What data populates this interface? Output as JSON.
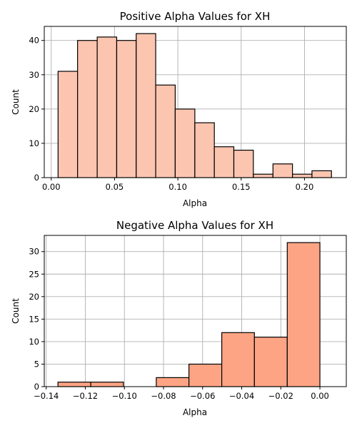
{
  "chart_data": [
    {
      "type": "bar",
      "title": "Positive Alpha Values for XH",
      "xlabel": "Alpha",
      "ylabel": "Count",
      "bar_color": "#fcc5b0",
      "edge_color": "#000000",
      "grid": true,
      "xlim": [
        -0.0055,
        0.233
      ],
      "ylim": [
        0,
        44.1
      ],
      "xticks": [
        0.0,
        0.05,
        0.1,
        0.15,
        0.2
      ],
      "xtick_labels": [
        "0.00",
        "0.05",
        "0.10",
        "0.15",
        "0.20"
      ],
      "yticks": [
        0,
        10,
        20,
        30,
        40
      ],
      "ytick_labels": [
        "0",
        "10",
        "20",
        "30",
        "40"
      ],
      "bins": [
        {
          "x0": 0.0054,
          "x1": 0.0208,
          "count": 31
        },
        {
          "x0": 0.0208,
          "x1": 0.0363,
          "count": 40
        },
        {
          "x0": 0.0363,
          "x1": 0.0517,
          "count": 41
        },
        {
          "x0": 0.0517,
          "x1": 0.0671,
          "count": 40
        },
        {
          "x0": 0.0671,
          "x1": 0.0825,
          "count": 42
        },
        {
          "x0": 0.0825,
          "x1": 0.0979,
          "count": 27
        },
        {
          "x0": 0.0979,
          "x1": 0.1134,
          "count": 20
        },
        {
          "x0": 0.1134,
          "x1": 0.1288,
          "count": 16
        },
        {
          "x0": 0.1288,
          "x1": 0.1442,
          "count": 9
        },
        {
          "x0": 0.1442,
          "x1": 0.1596,
          "count": 8
        },
        {
          "x0": 0.1596,
          "x1": 0.1751,
          "count": 1
        },
        {
          "x0": 0.1751,
          "x1": 0.1905,
          "count": 4
        },
        {
          "x0": 0.1905,
          "x1": 0.2059,
          "count": 1
        },
        {
          "x0": 0.2059,
          "x1": 0.2213,
          "count": 2
        }
      ]
    },
    {
      "type": "bar",
      "title": "Negative Alpha Values for XH",
      "xlabel": "Alpha",
      "ylabel": "Count",
      "bar_color": "#fca484",
      "edge_color": "#000000",
      "grid": true,
      "xlim": [
        -0.141,
        0.0135
      ],
      "ylim": [
        0,
        33.6
      ],
      "xticks": [
        -0.14,
        -0.12,
        -0.1,
        -0.08,
        -0.06,
        -0.04,
        -0.02,
        0.0
      ],
      "xtick_labels": [
        "−0.14",
        "−0.12",
        "−0.10",
        "−0.08",
        "−0.06",
        "−0.04",
        "−0.02",
        "0.00"
      ],
      "yticks": [
        0,
        5,
        10,
        15,
        20,
        25,
        30
      ],
      "ytick_labels": [
        "0",
        "5",
        "10",
        "15",
        "20",
        "25",
        "30"
      ],
      "bins": [
        {
          "x0": -0.134,
          "x1": -0.1172,
          "count": 1
        },
        {
          "x0": -0.1172,
          "x1": -0.1005,
          "count": 1
        },
        {
          "x0": -0.1005,
          "x1": -0.0837,
          "count": 0
        },
        {
          "x0": -0.0837,
          "x1": -0.067,
          "count": 2
        },
        {
          "x0": -0.067,
          "x1": -0.0502,
          "count": 5
        },
        {
          "x0": -0.0502,
          "x1": -0.0335,
          "count": 12
        },
        {
          "x0": -0.0335,
          "x1": -0.0167,
          "count": 11
        },
        {
          "x0": -0.0167,
          "x1": 0.0,
          "count": 32
        }
      ]
    }
  ]
}
